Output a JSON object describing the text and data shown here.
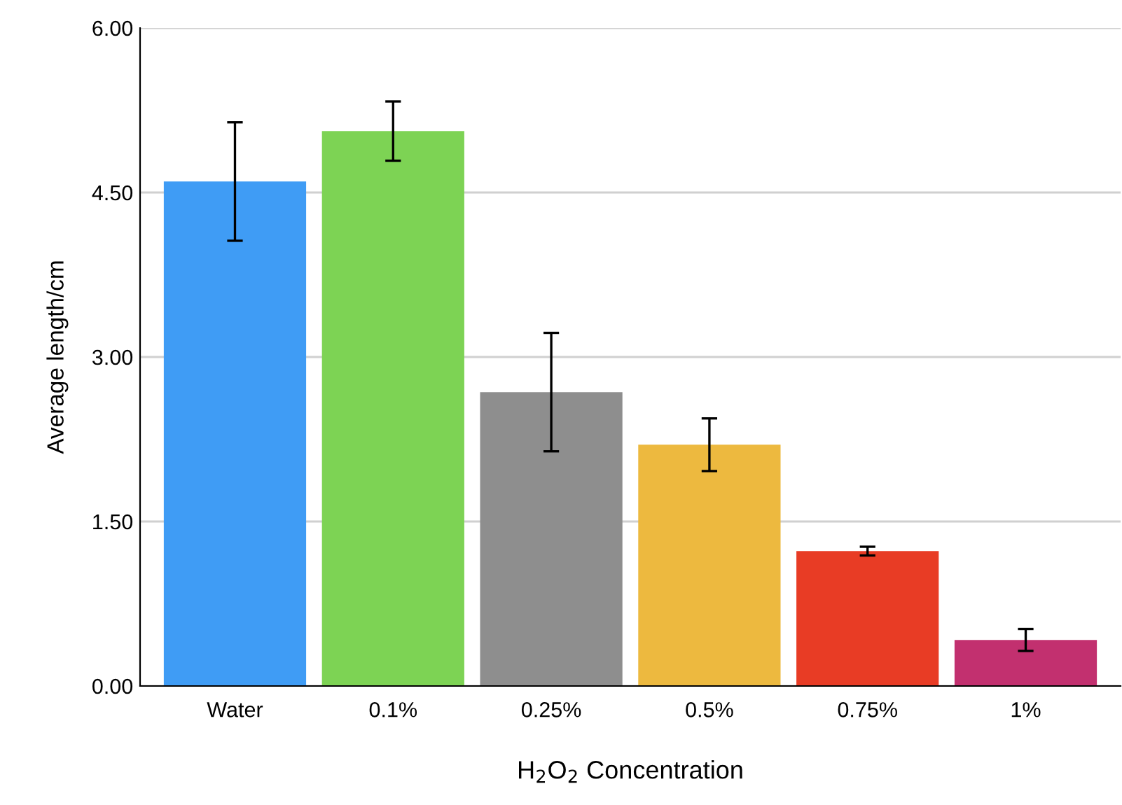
{
  "chart_data": {
    "type": "bar",
    "categories": [
      "Water",
      "0.1%",
      "0.25%",
      "0.5%",
      "0.75%",
      "1%"
    ],
    "values": [
      4.6,
      5.06,
      2.68,
      2.2,
      1.23,
      0.42
    ],
    "errors": [
      0.54,
      0.27,
      0.54,
      0.24,
      0.04,
      0.1
    ],
    "colors": [
      "#3f9cf5",
      "#7dd354",
      "#8e8e8e",
      "#edb93f",
      "#e83c25",
      "#c2306f"
    ],
    "xlabel": "H$_{2}$O$_{2}$ Concentration",
    "ylabel": "Average length/cm",
    "ylim": [
      0,
      6
    ],
    "yticks": [
      {
        "value": 0,
        "label": "0.00"
      },
      {
        "value": 1.5,
        "label": "1.50"
      },
      {
        "value": 3,
        "label": "3.00"
      },
      {
        "value": 4.5,
        "label": "4.50"
      },
      {
        "value": 6,
        "label": "6.00"
      }
    ],
    "grid": "y",
    "legend": false
  }
}
